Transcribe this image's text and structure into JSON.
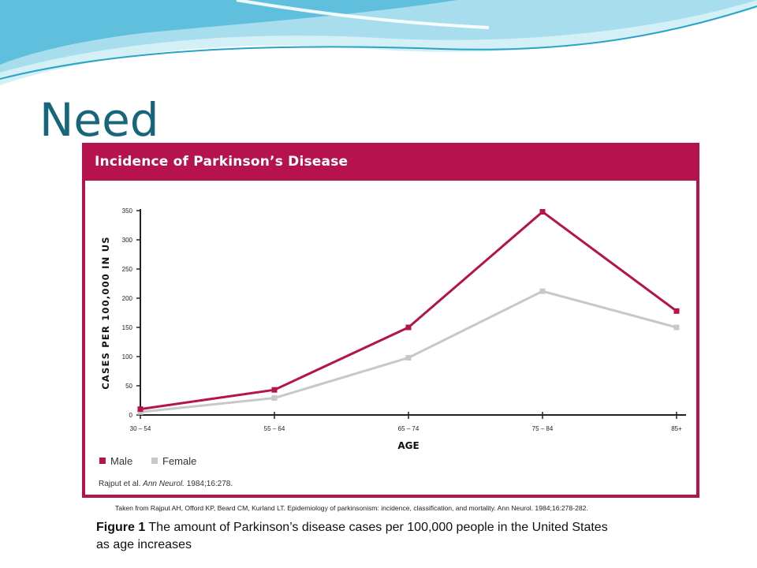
{
  "slide": {
    "title": "Need",
    "citation": "Taken from Rajput AH, Offord KP, Beard CM, Kurland LT. Epidemiology of parkinsonism: incidence, classification, and mortality. Ann Neurol. 1984;16:278-282.",
    "caption_label": "Figure 1",
    "caption_text": " The amount of Parkinson’s disease cases per 100,000 people in the United States as age increases"
  },
  "colors": {
    "accent": "#17667b",
    "chart_frame": "#b5124e",
    "male": "#b5124e",
    "female": "#c8c8c8",
    "wave_light": "#bfe8f3",
    "wave_dark": "#2aa3c6"
  },
  "chart_data": {
    "type": "line",
    "title": "Incidence of Parkinson’s Disease",
    "xlabel": "AGE",
    "ylabel": "CASES PER 100,000 IN US",
    "categories": [
      "30 – 54",
      "55 – 64",
      "65 – 74",
      "75 – 84",
      "85+"
    ],
    "ylim": [
      0,
      350
    ],
    "yticks": [
      0,
      50,
      100,
      150,
      200,
      250,
      300,
      350
    ],
    "grid": false,
    "legend_position": "bottom-left",
    "series": [
      {
        "name": "Male",
        "values": [
          10,
          43,
          150,
          348,
          178
        ]
      },
      {
        "name": "Female",
        "values": [
          5,
          29,
          98,
          212,
          150
        ]
      }
    ],
    "source": {
      "authors": "Rajput et al.",
      "journal": "Ann Neurol.",
      "ref": "1984;16:278."
    }
  }
}
